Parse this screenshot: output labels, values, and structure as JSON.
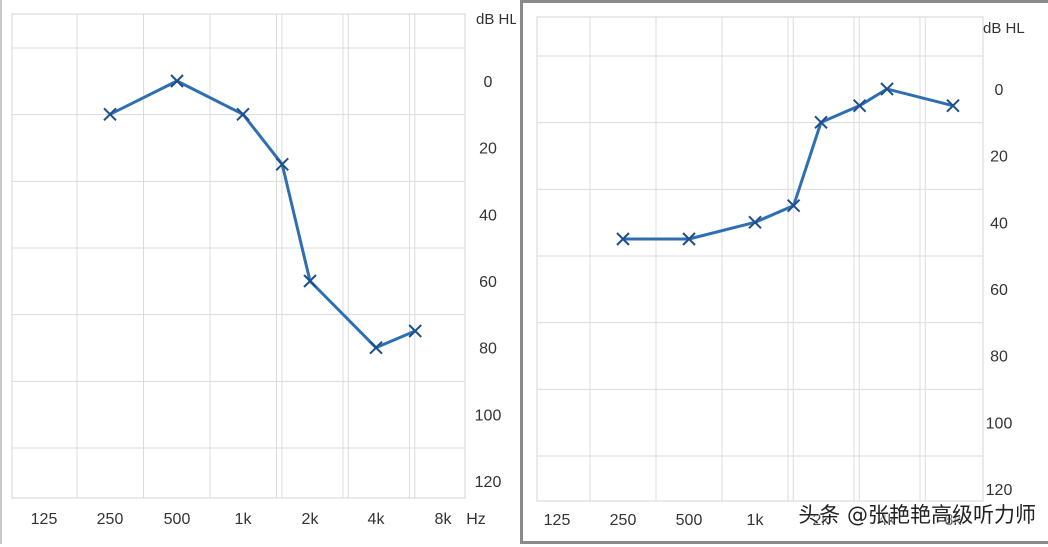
{
  "watermark": "头条 @张艳艳高级听力师",
  "chart_data": [
    {
      "type": "line",
      "panel": "left",
      "unit_label": "dB HL",
      "x_unit_label": "Hz",
      "categories": [
        "125",
        "250",
        "500",
        "1k",
        "2k",
        "4k",
        "8k"
      ],
      "y_ticks": [
        0,
        20,
        40,
        60,
        80,
        100,
        120
      ],
      "ylim": [
        -10,
        125
      ],
      "y_inverted": true,
      "grid": true,
      "color": "#2e6fb2",
      "marker": "x",
      "series": [
        {
          "points": [
            {
              "x": 250,
              "y": 10
            },
            {
              "x": 500,
              "y": 0
            },
            {
              "x": 1000,
              "y": 10
            },
            {
              "x": 1500,
              "y": 25
            },
            {
              "x": 2000,
              "y": 60
            },
            {
              "x": 4000,
              "y": 80
            },
            {
              "x": 6000,
              "y": 75
            }
          ]
        }
      ]
    },
    {
      "type": "line",
      "panel": "right",
      "unit_label": "dB HL",
      "x_unit_label": "",
      "categories": [
        "125",
        "250",
        "500",
        "1k",
        "2k",
        "4k",
        "8k"
      ],
      "y_ticks": [
        0,
        20,
        40,
        60,
        80,
        100,
        120
      ],
      "ylim": [
        -10,
        125
      ],
      "y_inverted": true,
      "grid": true,
      "color": "#2e6fb2",
      "marker": "x",
      "series": [
        {
          "points": [
            {
              "x": 250,
              "y": 45
            },
            {
              "x": 500,
              "y": 45
            },
            {
              "x": 1000,
              "y": 40
            },
            {
              "x": 1500,
              "y": 35
            },
            {
              "x": 2000,
              "y": 10
            },
            {
              "x": 3000,
              "y": 5
            },
            {
              "x": 4000,
              "y": 0
            },
            {
              "x": 8000,
              "y": 5
            }
          ]
        }
      ]
    }
  ]
}
